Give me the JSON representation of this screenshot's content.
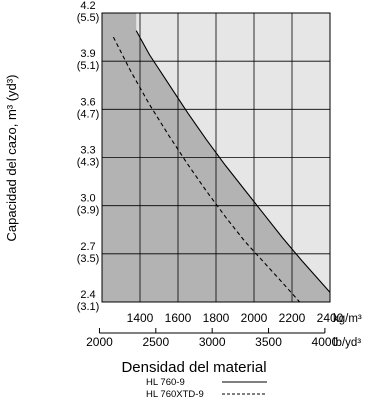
{
  "chart_data": {
    "type": "line",
    "title": "",
    "ylabel": "Capacidad del cazo, m³ (yd³)",
    "xlabel": "Densidad del material",
    "x_unit_primary": "kg/m³",
    "x_unit_secondary": "lb/yd³",
    "xlim": [
      1200,
      2400
    ],
    "ylim": [
      2.4,
      4.2
    ],
    "x_ticks": [
      {
        "value": 1400,
        "label": "1400"
      },
      {
        "value": 1600,
        "label": "1600"
      },
      {
        "value": 1800,
        "label": "1800"
      },
      {
        "value": 2000,
        "label": "2000"
      },
      {
        "value": 2200,
        "label": "2200"
      },
      {
        "value": 2400,
        "label": "2400"
      }
    ],
    "x_secondary_ticks": [
      {
        "label": "2000",
        "kgm3": 1186.6
      },
      {
        "label": "2500",
        "kgm3": 1483.2
      },
      {
        "label": "3000",
        "kgm3": 1779.9
      },
      {
        "label": "3500",
        "kgm3": 2076.5
      },
      {
        "label": "4000",
        "kgm3": 2373.1
      }
    ],
    "y_ticks": [
      {
        "value": 2.4,
        "label": "2.4",
        "label2": "(3.1)"
      },
      {
        "value": 2.7,
        "label": "2.7",
        "label2": "(3.5)"
      },
      {
        "value": 3.0,
        "label": "3.0",
        "label2": "(3.9)"
      },
      {
        "value": 3.3,
        "label": "3.3",
        "label2": "(4.3)"
      },
      {
        "value": 3.6,
        "label": "3.6",
        "label2": "(4.7)"
      },
      {
        "value": 3.9,
        "label": "3.9",
        "label2": "(5.1)"
      },
      {
        "value": 4.2,
        "label": "4.2",
        "label2": "(5.5)"
      }
    ],
    "grid": true,
    "legend_position": "bottom-center",
    "series": [
      {
        "name": "HL 760-9",
        "style": "solid",
        "x": [
          1380,
          1450,
          1550,
          1650,
          1750,
          1850,
          1950,
          2050,
          2150,
          2250,
          2400
        ],
        "y": [
          4.09,
          3.94,
          3.76,
          3.58,
          3.41,
          3.25,
          3.1,
          2.95,
          2.8,
          2.66,
          2.46
        ]
      },
      {
        "name": "HL 760XTD-9",
        "style": "dashed",
        "x": [
          1260,
          1350,
          1450,
          1550,
          1650,
          1750,
          1850,
          1950,
          2050,
          2150,
          2240
        ],
        "y": [
          4.05,
          3.84,
          3.63,
          3.44,
          3.26,
          3.09,
          2.93,
          2.78,
          2.65,
          2.52,
          2.4
        ]
      }
    ],
    "colors": {
      "region_dark": "#b3b3b3",
      "region_light": "#e6e6e6",
      "line": "#000000",
      "grid": "#000000"
    }
  }
}
